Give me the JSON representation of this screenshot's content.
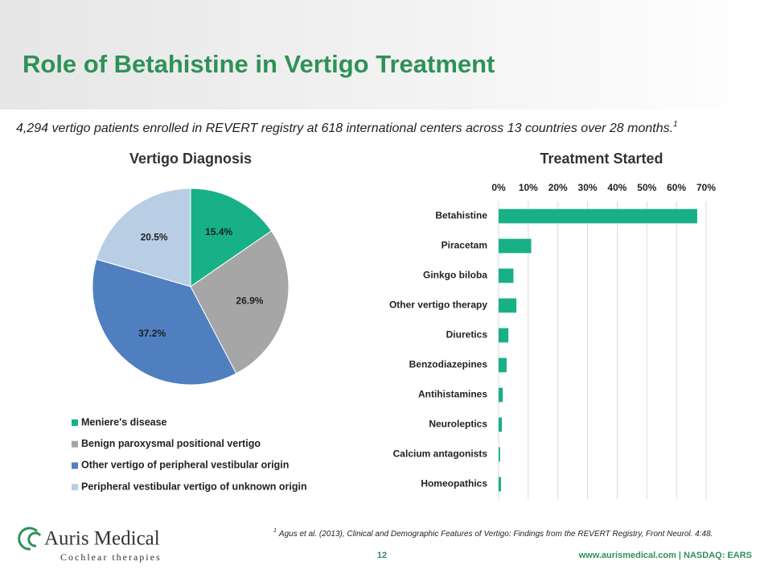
{
  "slide": {
    "title": "Role of Betahistine in Vertigo Treatment",
    "subtitle": "4,294 vertigo patients enrolled in REVERT registry at 618 international centers across 13 countries over 28 months.",
    "subtitle_note": "1",
    "footnote_mark": "1",
    "footnote": "Agus et al. (2013), Clinical and Demographic Features of Vertigo: Findings from the REVERT Registry, Front Neurol. 4:48.",
    "page_number": "12",
    "logo_name": "Auris Medical",
    "logo_tagline": "Cochlear therapies",
    "footer": "www.aurismedical.com | NASDAQ: EARS"
  },
  "chart_data": [
    {
      "type": "pie",
      "title": "Vertigo Diagnosis",
      "categories": [
        "Meniere's disease",
        "Benign paroxysmal positional vertigo",
        "Other vertigo of peripheral vestibular origin",
        "Peripheral vestibular vertigo of unknown origin"
      ],
      "values": [
        15.4,
        26.9,
        37.2,
        20.5
      ],
      "value_labels": [
        "15.4%",
        "26.9%",
        "37.2%",
        "20.5%"
      ],
      "colors": [
        "#17b087",
        "#a6a6a6",
        "#4f7fbf",
        "#b9cde5"
      ],
      "legend": "bottom"
    },
    {
      "type": "hbar",
      "title": "Treatment Started",
      "categories": [
        "Betahistine",
        "Piracetam",
        "Ginkgo biloba",
        "Other vertigo therapy",
        "Diuretics",
        "Benzodiazepines",
        "Antihistamines",
        "Neuroleptics",
        "Calcium antagonists",
        "Homeopathics"
      ],
      "values": [
        67,
        11,
        5,
        6,
        3.3,
        2.7,
        1.4,
        1.1,
        0.5,
        0.8
      ],
      "color": "#17b087",
      "xlim": [
        0,
        70
      ],
      "xticks": [
        {
          "value": 0,
          "label": "0%"
        },
        {
          "value": 10,
          "label": "10%"
        },
        {
          "value": 20,
          "label": "20%"
        },
        {
          "value": 30,
          "label": "30%"
        },
        {
          "value": 40,
          "label": "40%"
        },
        {
          "value": 50,
          "label": "50%"
        },
        {
          "value": 60,
          "label": "60%"
        },
        {
          "value": 70,
          "label": "70%"
        }
      ],
      "grid": true
    }
  ]
}
